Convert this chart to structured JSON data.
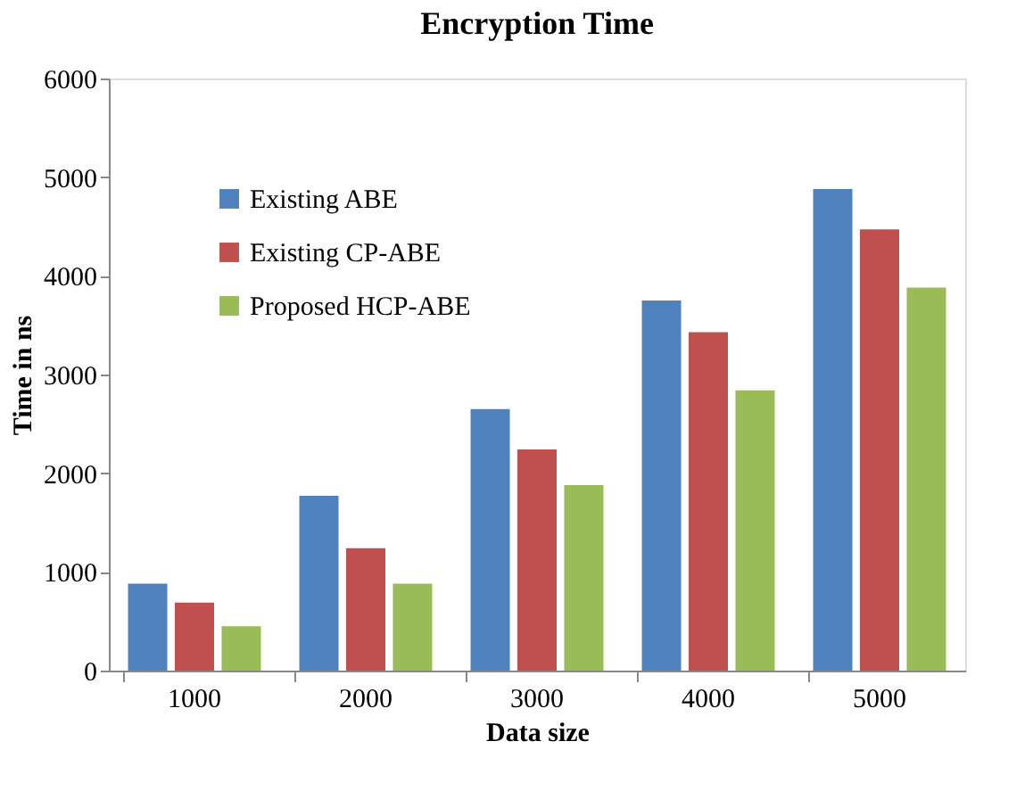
{
  "chart_data": {
    "type": "bar",
    "title": "Encryption Time",
    "xlabel": "Data size",
    "ylabel": "Time in ns",
    "categories": [
      "1000",
      "2000",
      "3000",
      "4000",
      "5000"
    ],
    "series": [
      {
        "name": "Existing ABE",
        "color": "#4f81bd",
        "values": [
          880,
          1770,
          2650,
          3750,
          4880
        ]
      },
      {
        "name": "Existing CP-ABE",
        "color": "#c0504d",
        "values": [
          690,
          1240,
          2240,
          3430,
          4470
        ]
      },
      {
        "name": "Proposed HCP-ABE",
        "color": "#9bbb59",
        "values": [
          450,
          880,
          1880,
          2840,
          3880
        ]
      }
    ],
    "ylim": [
      0,
      6000
    ],
    "yticks": [
      0,
      1000,
      2000,
      3000,
      4000,
      5000,
      6000
    ],
    "grid": false,
    "legend": "top left"
  }
}
